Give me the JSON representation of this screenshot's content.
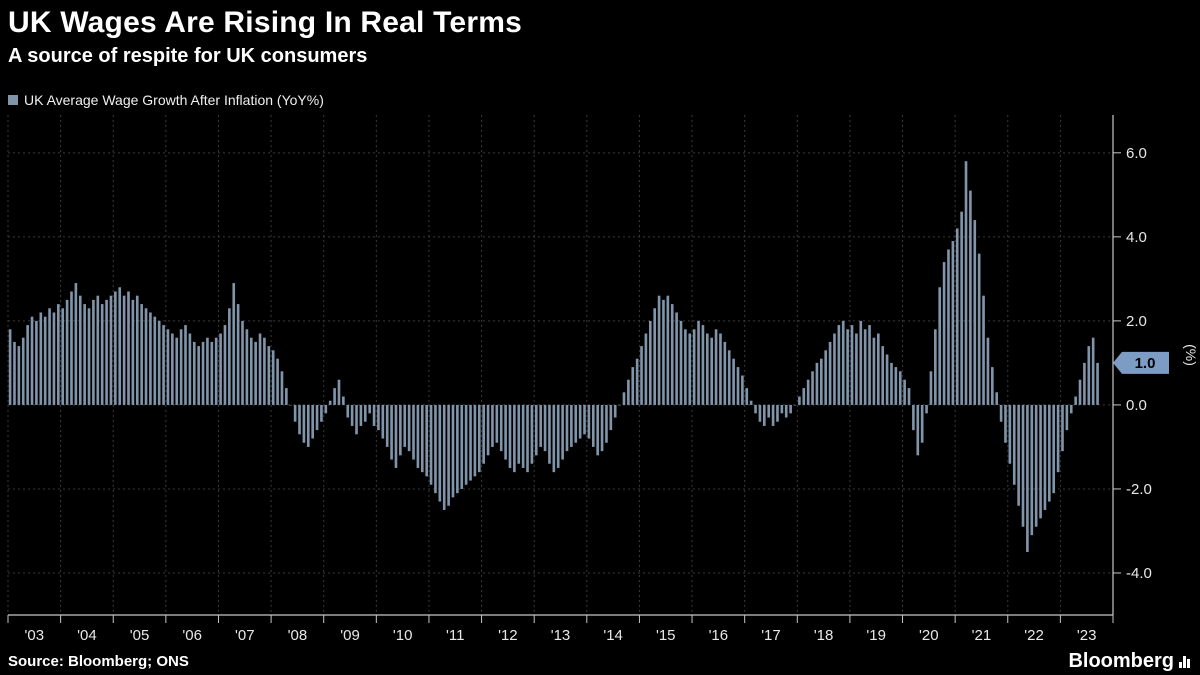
{
  "header": {
    "title": "UK Wages Are Rising In Real Terms",
    "subtitle": "A source of respite for UK consumers"
  },
  "legend": {
    "label": "UK Average Wage Growth After Inflation (YoY%)",
    "swatch_color": "#8094aa"
  },
  "footer": {
    "source": "Source: Bloomberg; ONS",
    "logo_text": "Bloomberg"
  },
  "chart_data": {
    "type": "bar",
    "title": "UK Wages Are Rising In Real Terms",
    "subtitle": "A source of respite for UK consumers",
    "series_name": "UK Average Wage Growth After Inflation (YoY%)",
    "frequency": "monthly",
    "start": "2003-01",
    "end": "2023-09",
    "x_tick_labels": [
      "'03",
      "'04",
      "'05",
      "'06",
      "'07",
      "'08",
      "'09",
      "'10",
      "'11",
      "'12",
      "'13",
      "'14",
      "'15",
      "'16",
      "'17",
      "'18",
      "'19",
      "'20",
      "'21",
      "'22",
      "'23"
    ],
    "y_ticks": [
      6.0,
      4.0,
      2.0,
      0.0,
      -2.0,
      -4.0
    ],
    "y_tick_labels": [
      "6.0",
      "4.0",
      "2.0",
      "0.0",
      "-2.0",
      "-4.0"
    ],
    "ylim": [
      -5.0,
      6.9
    ],
    "y_axis_unit": "(%)",
    "grid": true,
    "legend_position": "top-left",
    "bar_color": "#8094aa",
    "last_value": 1.0,
    "last_value_label": "1.0",
    "last_value_badge_color": "#7d9cc4",
    "values": [
      1.8,
      1.5,
      1.4,
      1.6,
      1.9,
      2.1,
      2.0,
      2.2,
      2.1,
      2.3,
      2.2,
      2.4,
      2.3,
      2.5,
      2.7,
      2.9,
      2.6,
      2.4,
      2.3,
      2.5,
      2.6,
      2.4,
      2.5,
      2.6,
      2.7,
      2.8,
      2.6,
      2.7,
      2.5,
      2.6,
      2.4,
      2.3,
      2.2,
      2.1,
      2.0,
      1.9,
      1.8,
      1.7,
      1.6,
      1.8,
      1.9,
      1.7,
      1.5,
      1.4,
      1.5,
      1.6,
      1.5,
      1.6,
      1.7,
      1.9,
      2.3,
      2.9,
      2.4,
      2.0,
      1.8,
      1.6,
      1.5,
      1.7,
      1.6,
      1.4,
      1.3,
      1.1,
      0.8,
      0.4,
      0.0,
      -0.4,
      -0.7,
      -0.9,
      -1.0,
      -0.8,
      -0.6,
      -0.4,
      -0.2,
      0.1,
      0.4,
      0.6,
      0.2,
      -0.3,
      -0.5,
      -0.7,
      -0.5,
      -0.4,
      -0.2,
      -0.5,
      -0.6,
      -0.8,
      -1.0,
      -1.3,
      -1.5,
      -1.2,
      -1.0,
      -1.1,
      -1.3,
      -1.5,
      -1.6,
      -1.7,
      -1.9,
      -2.1,
      -2.3,
      -2.5,
      -2.4,
      -2.2,
      -2.1,
      -2.0,
      -1.9,
      -1.8,
      -1.7,
      -1.6,
      -1.4,
      -1.2,
      -1.0,
      -0.9,
      -1.1,
      -1.3,
      -1.5,
      -1.6,
      -1.4,
      -1.5,
      -1.6,
      -1.4,
      -1.2,
      -1.0,
      -1.1,
      -1.4,
      -1.6,
      -1.5,
      -1.3,
      -1.1,
      -1.0,
      -0.9,
      -0.8,
      -0.7,
      -0.8,
      -1.0,
      -1.2,
      -1.1,
      -0.9,
      -0.6,
      -0.3,
      0.0,
      0.3,
      0.6,
      0.9,
      1.1,
      1.4,
      1.7,
      2.0,
      2.3,
      2.6,
      2.5,
      2.6,
      2.4,
      2.2,
      2.0,
      1.8,
      1.7,
      1.8,
      2.0,
      1.9,
      1.7,
      1.6,
      1.8,
      1.7,
      1.5,
      1.3,
      1.1,
      0.9,
      0.7,
      0.4,
      0.1,
      -0.2,
      -0.4,
      -0.5,
      -0.3,
      -0.5,
      -0.4,
      -0.2,
      -0.3,
      -0.2,
      0.0,
      0.2,
      0.4,
      0.6,
      0.8,
      1.0,
      1.1,
      1.3,
      1.5,
      1.7,
      1.9,
      2.0,
      1.8,
      1.9,
      1.7,
      2.0,
      1.8,
      1.9,
      1.6,
      1.7,
      1.4,
      1.2,
      1.0,
      0.9,
      0.8,
      0.6,
      0.4,
      -0.6,
      -1.2,
      -0.9,
      -0.2,
      0.8,
      1.8,
      2.8,
      3.4,
      3.7,
      3.9,
      4.2,
      4.6,
      5.8,
      5.1,
      4.4,
      3.6,
      2.6,
      1.6,
      0.9,
      0.3,
      -0.4,
      -0.9,
      -1.4,
      -1.9,
      -2.4,
      -2.9,
      -3.5,
      -3.1,
      -2.9,
      -2.7,
      -2.5,
      -2.3,
      -2.1,
      -1.6,
      -1.1,
      -0.6,
      -0.2,
      0.2,
      0.6,
      1.0,
      1.4,
      1.6,
      1.0
    ]
  }
}
